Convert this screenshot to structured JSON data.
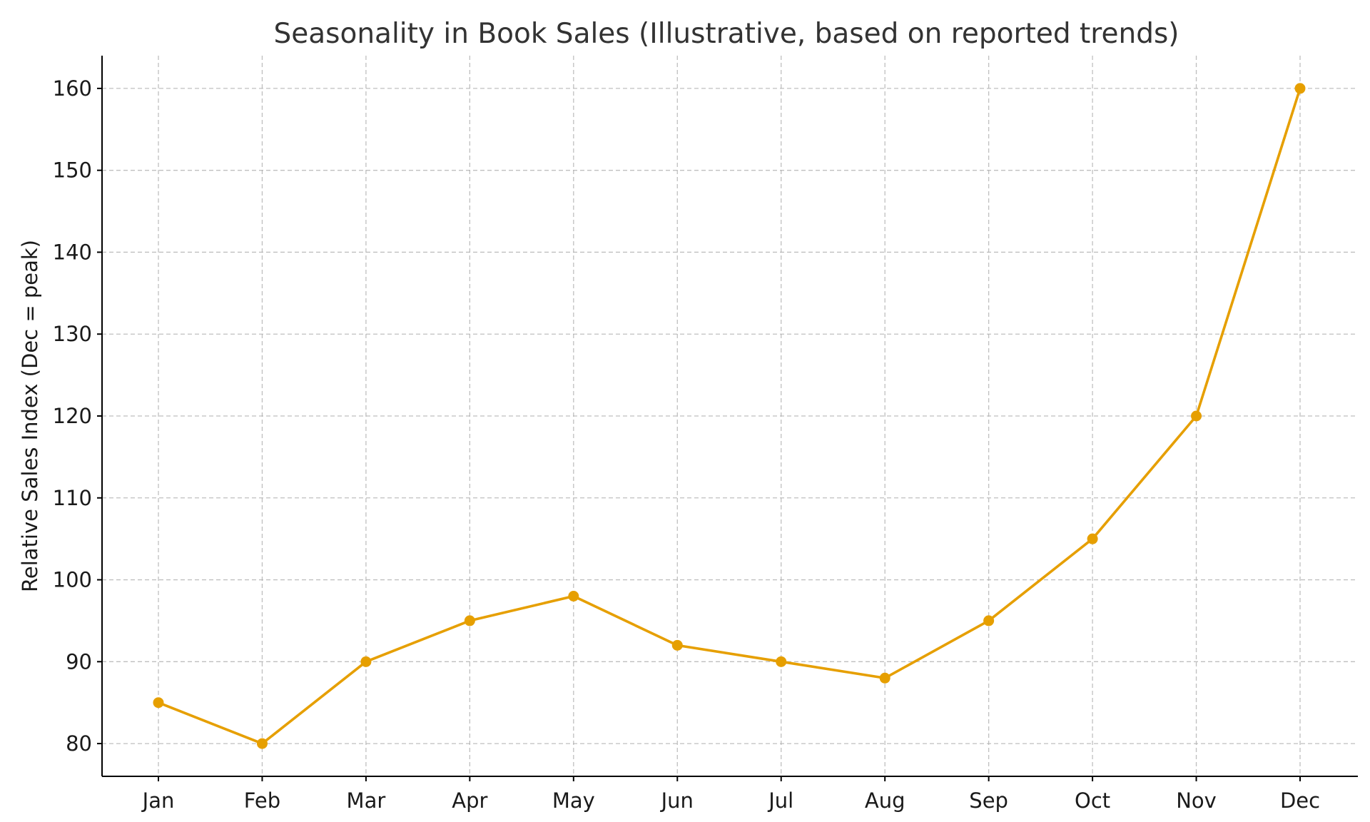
{
  "chart_data": {
    "type": "line",
    "title": "Seasonality in Book Sales (Illustrative, based on reported trends)",
    "xlabel": "",
    "ylabel": "Relative Sales Index (Dec = peak)",
    "categories": [
      "Jan",
      "Feb",
      "Mar",
      "Apr",
      "May",
      "Jun",
      "Jul",
      "Aug",
      "Sep",
      "Oct",
      "Nov",
      "Dec"
    ],
    "series": [
      {
        "values": [
          85,
          80,
          90,
          95,
          98,
          92,
          90,
          88,
          95,
          105,
          120,
          160
        ],
        "color": "#E69F00",
        "marker": "circle"
      }
    ],
    "yticks": [
      80,
      90,
      100,
      110,
      120,
      130,
      140,
      150,
      160
    ],
    "ylim": [
      76,
      164
    ],
    "grid": true,
    "grid_style": "dashed",
    "legend": "none"
  }
}
